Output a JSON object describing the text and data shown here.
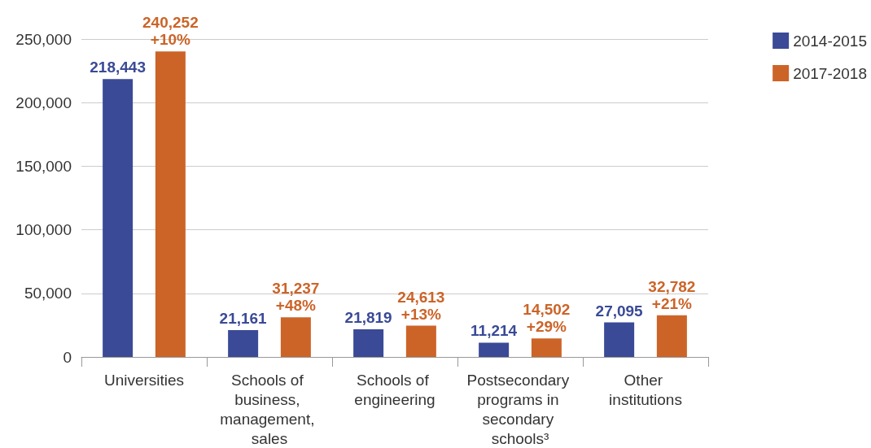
{
  "chart_data": {
    "type": "bar",
    "categories": [
      "Universities",
      "Schools of business, management, sales",
      "Schools of engineering",
      "Postsecondary programs in secondary schools³",
      "Other institutions"
    ],
    "series": [
      {
        "name": "2014-2015",
        "color": "#3a4a96",
        "values": [
          218443,
          21161,
          21819,
          11214,
          27095
        ],
        "value_labels": [
          "218,443",
          "21,161",
          "21,819",
          "11,214",
          "27,095"
        ]
      },
      {
        "name": "2017-2018",
        "color": "#cc6428",
        "values": [
          240252,
          31237,
          24613,
          14502,
          32782
        ],
        "value_labels": [
          "240,252\n+10%",
          "31,237\n+48%",
          "24,613\n+13%",
          "14,502\n+29%",
          "32,782\n+21%"
        ]
      }
    ],
    "ylim": [
      0,
      250000
    ],
    "yticks": [
      0,
      {
        "value": 50000,
        "label": "50,000"
      },
      {
        "value": 100000,
        "label": "100,000"
      },
      {
        "value": 150000,
        "label": "150,000"
      },
      {
        "value": 200000,
        "label": "200,000"
      },
      {
        "value": 250000,
        "label": "250,000"
      }
    ],
    "grid": "y",
    "legend": "top right"
  }
}
